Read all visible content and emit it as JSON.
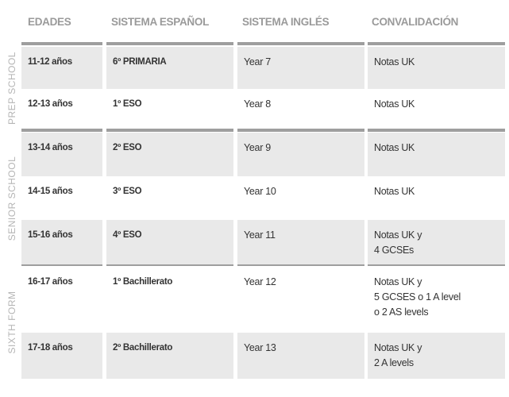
{
  "headers": [
    "EDADES",
    "SISTEMA ESPAÑOL",
    "SISTEMA INGLÉS",
    "CONVALIDACIÓN"
  ],
  "sections": [
    "PREP SCHOOL",
    "SENIOR SCHOOL",
    "SIXTH FORM"
  ],
  "rows": [
    {
      "edad": "11-12 años",
      "es": "6º PRIMARIA",
      "uk": "Year 7",
      "conv": "Notas UK"
    },
    {
      "edad": "12-13 años",
      "es": "1º ESO",
      "uk": "Year 8",
      "conv": "Notas UK"
    },
    {
      "edad": "13-14 años",
      "es": "2º ESO",
      "uk": "Year 9",
      "conv": "Notas UK"
    },
    {
      "edad": "14-15 años",
      "es": "3º ESO",
      "uk": "Year 10",
      "conv": "Notas UK"
    },
    {
      "edad": "15-16 años",
      "es": "4º ESO",
      "uk": "Year 11",
      "conv": "Notas UK y\n4 GCSEs"
    },
    {
      "edad": "16-17 años",
      "es": "1º Bachillerato",
      "uk": "Year 12",
      "conv": "Notas UK y\n5 GCSES o 1 A level\no 2 AS levels"
    },
    {
      "edad": "17-18 años",
      "es": "2º Bachillerato",
      "uk": "Year 13",
      "conv": "Notas UK y\n2 A levels"
    }
  ],
  "colors": {
    "row_fill": "#e9e9e9",
    "divider": "#9e9e9e",
    "header_text": "#9a9a9a",
    "section_text": "#b5b5b5"
  }
}
